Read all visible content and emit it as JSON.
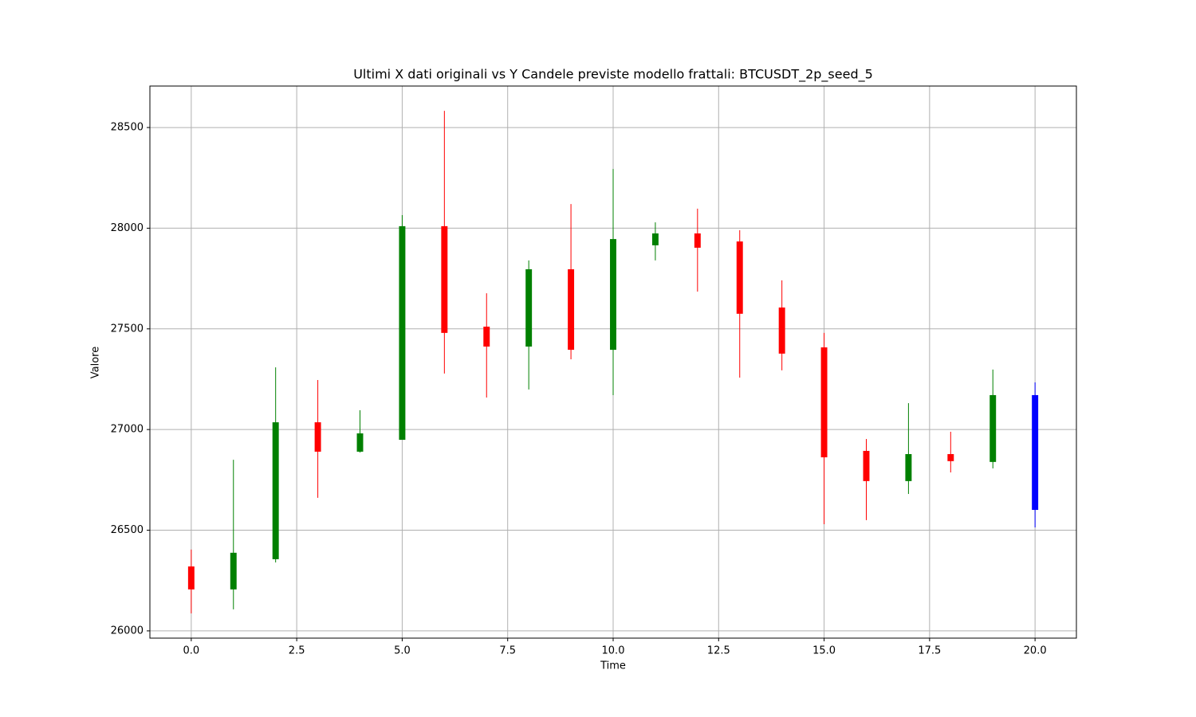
{
  "chart_data": {
    "type": "candlestick",
    "title": "Ultimi X dati originali vs Y Candele previste modello frattali: BTCUSDT_2p_seed_5",
    "x_label": "Time",
    "y_label": "Valore",
    "xlim": [
      -0.98,
      20.98
    ],
    "ylim": [
      25964,
      28706
    ],
    "xticks": [
      {
        "value": 0,
        "label": "0.0"
      },
      2.5,
      {
        "value": 5,
        "label": "5.0"
      },
      7.5,
      {
        "value": 10,
        "label": "10.0"
      },
      12.5,
      {
        "value": 15,
        "label": "15.0"
      },
      17.5,
      {
        "value": 20,
        "label": "20.0"
      }
    ],
    "yticks": [
      26000,
      26500,
      27000,
      27500,
      28000,
      28500
    ],
    "grid": true,
    "series": [
      {
        "up_color": "green",
        "down_color": "red",
        "x": [
          0,
          1,
          2,
          3,
          4,
          5,
          6,
          7,
          8,
          9,
          10,
          11,
          12,
          13,
          14,
          15,
          16,
          17,
          18,
          19
        ],
        "open": [
          26320,
          26206,
          26356,
          27036,
          26890,
          26949,
          28010,
          27511,
          27412,
          27796,
          27396,
          27915,
          27974,
          27934,
          27606,
          27408,
          26894,
          26744,
          26878,
          26839
        ],
        "high": [
          26404,
          26850,
          27309,
          27246,
          27096,
          28065,
          28583,
          27677,
          27840,
          28120,
          28294,
          28029,
          28097,
          27990,
          27741,
          27480,
          26953,
          27131,
          26989,
          27298
        ],
        "low": [
          26087,
          26107,
          26340,
          26661,
          26886,
          26949,
          27278,
          27159,
          27199,
          27349,
          27171,
          27840,
          27685,
          27258,
          27294,
          26530,
          26550,
          26680,
          26787,
          26807
        ],
        "close": [
          26206,
          26388,
          27036,
          26890,
          26981,
          28010,
          27480,
          27412,
          27796,
          27396,
          27946,
          27974,
          27903,
          27575,
          27377,
          26862,
          26744,
          26878,
          26843,
          27171
        ]
      },
      {
        "color": "blue",
        "x": [
          20
        ],
        "open": [
          27171
        ],
        "high": [
          27234
        ],
        "low": [
          26514
        ],
        "close": [
          26601
        ]
      }
    ]
  }
}
